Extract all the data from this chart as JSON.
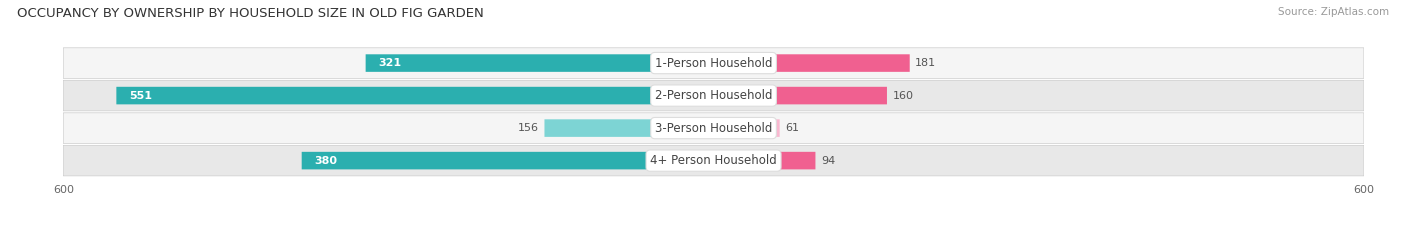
{
  "title": "OCCUPANCY BY OWNERSHIP BY HOUSEHOLD SIZE IN OLD FIG GARDEN",
  "source": "Source: ZipAtlas.com",
  "categories": [
    "1-Person Household",
    "2-Person Household",
    "3-Person Household",
    "4+ Person Household"
  ],
  "owner_values": [
    321,
    551,
    156,
    380
  ],
  "renter_values": [
    181,
    160,
    61,
    94
  ],
  "owner_color_dark": "#2BAFAF",
  "owner_color_light": "#7DD4D4",
  "renter_color_dark": "#F06090",
  "renter_color_light": "#F9B8D0",
  "row_bg_colors": [
    "#F5F5F5",
    "#E8E8E8",
    "#F5F5F5",
    "#E8E8E8"
  ],
  "axis_max": 600,
  "title_fontsize": 9.5,
  "label_fontsize": 8.5,
  "value_fontsize": 8,
  "tick_fontsize": 8,
  "source_fontsize": 7.5,
  "legend_fontsize": 8,
  "fig_width": 14.06,
  "fig_height": 2.33,
  "dpi": 100
}
